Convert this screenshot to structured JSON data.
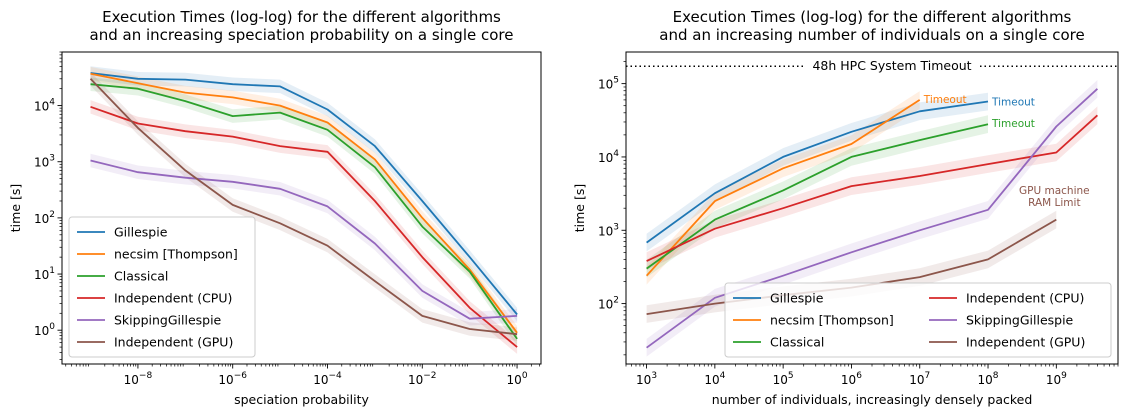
{
  "chart_data": [
    {
      "type": "line",
      "title": [
        "Execution Times (log-log) for the different algorithms",
        "and an increasing speciation probability on a single core"
      ],
      "xlabel": "speciation probability",
      "ylabel": "time [s]",
      "xscale": "log",
      "yscale": "log",
      "xlim": [
        2.5e-10,
        3.2
      ],
      "ylim": [
        0.25,
        90000
      ],
      "xticks": [
        1e-08,
        1e-06,
        0.0001,
        0.01,
        1
      ],
      "xticklabels": [
        [
          "10",
          "−8"
        ],
        [
          "10",
          "−6"
        ],
        [
          "10",
          "−4"
        ],
        [
          "10",
          "−2"
        ],
        [
          "10",
          "0"
        ]
      ],
      "yticks": [
        1,
        10,
        100,
        1000,
        10000
      ],
      "yticklabels": [
        [
          "10",
          "0"
        ],
        [
          "10",
          "1"
        ],
        [
          "10",
          "2"
        ],
        [
          "10",
          "3"
        ],
        [
          "10",
          "4"
        ]
      ],
      "grid": false,
      "legend": "lower-left",
      "series": [
        {
          "name": "Gillespie",
          "color": "#1f77b4",
          "x": [
            1e-09,
            1e-08,
            1e-07,
            1e-06,
            1e-05,
            0.0001,
            0.001,
            0.01,
            0.1,
            1
          ],
          "y": [
            38000,
            30000,
            29000,
            24000,
            22000,
            8500,
            1900,
            200,
            20,
            1.9
          ]
        },
        {
          "name": "necsim [Thompson]",
          "color": "#ff7f0e",
          "x": [
            1e-09,
            1e-08,
            1e-07,
            1e-06,
            1e-05,
            0.0001,
            0.001,
            0.01,
            0.1,
            1
          ],
          "y": [
            37000,
            25000,
            17000,
            14000,
            10000,
            5000,
            1100,
            100,
            12,
            0.9
          ]
        },
        {
          "name": "Classical",
          "color": "#2ca02c",
          "x": [
            1e-09,
            1e-08,
            1e-07,
            1e-06,
            1e-05,
            0.0001,
            0.001,
            0.01,
            0.1,
            1
          ],
          "y": [
            24000,
            20000,
            12000,
            6500,
            7500,
            3700,
            800,
            70,
            11,
            0.7
          ]
        },
        {
          "name": "Independent (CPU)",
          "color": "#d62728",
          "x": [
            1e-09,
            1e-08,
            1e-07,
            1e-06,
            1e-05,
            0.0001,
            0.001,
            0.01,
            0.1,
            1
          ],
          "y": [
            9500,
            4800,
            3500,
            2800,
            1900,
            1500,
            200,
            20,
            2.5,
            0.5
          ]
        },
        {
          "name": "SkippingGillespie",
          "color": "#9467bd",
          "x": [
            1e-09,
            1e-08,
            1e-07,
            1e-06,
            1e-05,
            0.0001,
            0.001,
            0.01,
            0.1,
            1
          ],
          "y": [
            1050,
            650,
            520,
            440,
            330,
            160,
            35,
            5,
            1.6,
            1.8
          ]
        },
        {
          "name": "Independent (GPU)",
          "color": "#8c564b",
          "x": [
            1e-09,
            1e-08,
            1e-07,
            1e-06,
            1e-05,
            0.0001,
            0.001,
            0.01,
            0.1,
            1
          ],
          "y": [
            30000,
            4000,
            700,
            170,
            80,
            32,
            7.5,
            1.8,
            1.05,
            0.85
          ]
        }
      ]
    },
    {
      "type": "line",
      "title": [
        "Execution Times (log-log) for the different algorithms",
        "and an increasing number of individuals on a single core"
      ],
      "xlabel": "number of individuals, increasingly densely packed",
      "ylabel": "time [s]",
      "xscale": "log",
      "yscale": "log",
      "xlim": [
        500,
        8000000000.0
      ],
      "ylim": [
        15,
        270000
      ],
      "xticks": [
        1000.0,
        10000.0,
        100000.0,
        1000000.0,
        10000000.0,
        100000000.0,
        1000000000.0
      ],
      "xticklabels": [
        [
          "10",
          "3"
        ],
        [
          "10",
          "4"
        ],
        [
          "10",
          "5"
        ],
        [
          "10",
          "6"
        ],
        [
          "10",
          "7"
        ],
        [
          "10",
          "8"
        ],
        [
          "10",
          "9"
        ]
      ],
      "yticks": [
        100,
        1000,
        10000,
        100000
      ],
      "yticklabels": [
        [
          "10",
          "2"
        ],
        [
          "10",
          "3"
        ],
        [
          "10",
          "4"
        ],
        [
          "10",
          "5"
        ]
      ],
      "grid": false,
      "legend": "lower-right",
      "reference_line": {
        "y": 172800,
        "label": "48h HPC System Timeout"
      },
      "annotations": [
        {
          "text": "Timeout",
          "x": 10000000.0,
          "y": 60000,
          "color": "#ff7f0e"
        },
        {
          "text": "Timeout",
          "x": 100000000.0,
          "y": 55000,
          "color": "#1f77b4"
        },
        {
          "text": "Timeout",
          "x": 100000000.0,
          "y": 28000,
          "color": "#2ca02c"
        },
        {
          "text": [
            "GPU machine",
            "RAM Limit"
          ],
          "x": 1000000000.0,
          "y": 2000,
          "color": "#8c564b"
        }
      ],
      "series": [
        {
          "name": "Gillespie",
          "color": "#1f77b4",
          "x": [
            1000.0,
            10000.0,
            100000.0,
            1000000.0,
            10000000.0,
            100000000.0
          ],
          "y": [
            680,
            3200,
            10000,
            22000,
            42000,
            57000
          ]
        },
        {
          "name": "necsim [Thompson]",
          "color": "#ff7f0e",
          "x": [
            1000.0,
            10000.0,
            100000.0,
            1000000.0,
            10000000.0
          ],
          "y": [
            240,
            2500,
            7000,
            15000,
            60000
          ]
        },
        {
          "name": "Classical",
          "color": "#2ca02c",
          "x": [
            1000.0,
            10000.0,
            100000.0,
            1000000.0,
            10000000.0,
            100000000.0
          ],
          "y": [
            300,
            1400,
            3500,
            10000,
            17000,
            28000
          ]
        },
        {
          "name": "Independent (CPU)",
          "color": "#d62728",
          "x": [
            1000.0,
            10000.0,
            100000.0,
            1000000.0,
            10000000.0,
            100000000.0,
            1000000000.0,
            4000000000.0
          ],
          "y": [
            380,
            1050,
            2000,
            4000,
            5500,
            8000,
            11500,
            37000
          ]
        },
        {
          "name": "SkippingGillespie",
          "color": "#9467bd",
          "x": [
            1000.0,
            10000.0,
            100000.0,
            1000000.0,
            10000000.0,
            100000000.0,
            1000000000.0,
            4000000000.0
          ],
          "y": [
            25,
            120,
            240,
            500,
            1000,
            1900,
            26000,
            85000
          ]
        },
        {
          "name": "Independent (GPU)",
          "color": "#8c564b",
          "x": [
            1000.0,
            10000.0,
            100000.0,
            1000000.0,
            10000000.0,
            100000000.0,
            1000000000.0
          ],
          "y": [
            72,
            100,
            130,
            165,
            230,
            400,
            1400
          ]
        }
      ]
    }
  ]
}
